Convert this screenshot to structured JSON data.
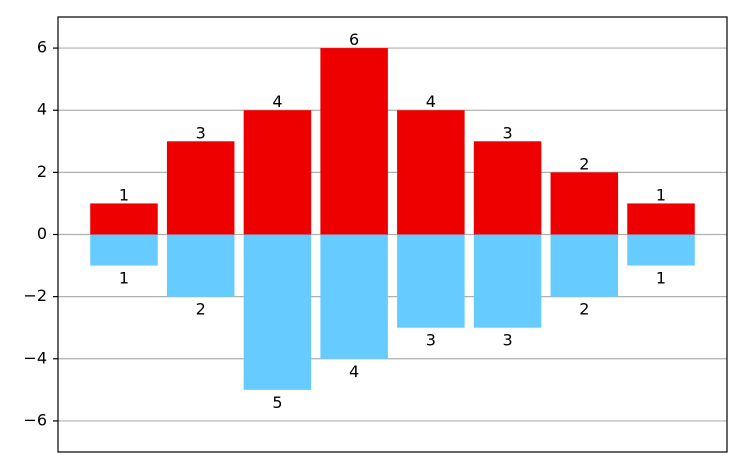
{
  "chart_data": {
    "type": "bar",
    "title": "",
    "xlabel": "",
    "ylabel": "",
    "x_ticks_visible": false,
    "ylim": [
      -7,
      7
    ],
    "yticks": [
      -6,
      -4,
      -2,
      0,
      2,
      4,
      6
    ],
    "ytick_labels": [
      "−6",
      "−4",
      "−2",
      "0",
      "2",
      "4",
      "6"
    ],
    "grid": "horizontal",
    "positions": [
      1,
      2,
      3,
      4,
      5,
      6,
      7,
      8
    ],
    "series": [
      {
        "color": "#ee0000",
        "values": [
          1,
          3,
          4,
          6,
          4,
          3,
          2,
          1
        ],
        "labels": [
          "1",
          "3",
          "4",
          "6",
          "4",
          "3",
          "2",
          "1"
        ]
      },
      {
        "color": "#66ccff",
        "values": [
          -1,
          -2,
          -5,
          -4,
          -3,
          -3,
          -2,
          -1
        ],
        "labels": [
          "1",
          "2",
          "5",
          "4",
          "3",
          "3",
          "2",
          "1"
        ]
      }
    ]
  }
}
